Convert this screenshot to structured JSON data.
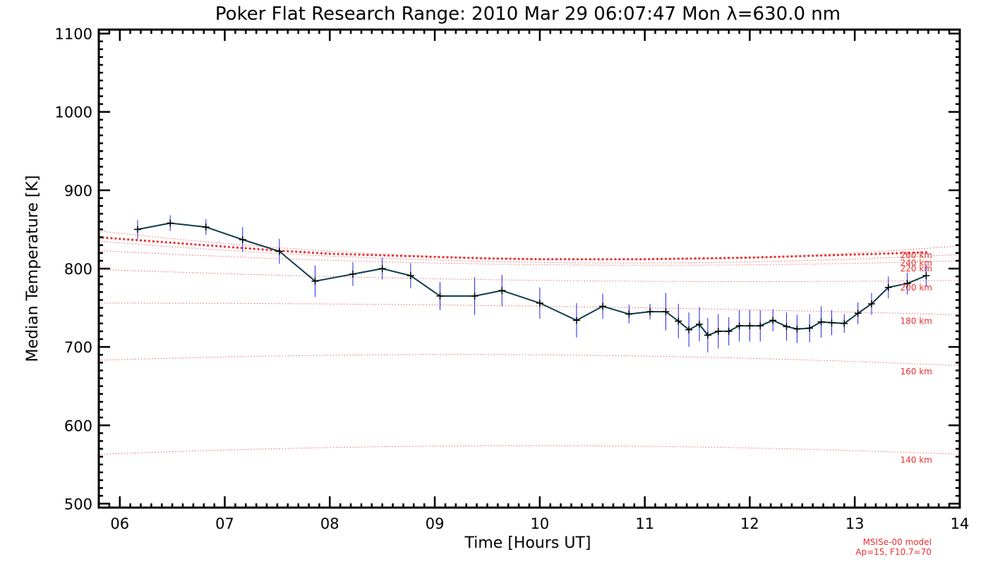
{
  "chart_data": {
    "type": "line",
    "title": "Poker Flat Research Range: 2010 Mar 29 06:07:47 Mon λ=630.0 nm",
    "xlabel": "Time [Hours UT]",
    "ylabel": "Median Temperature [K]",
    "xlim": [
      5.8,
      14.0
    ],
    "ylim": [
      495,
      1105
    ],
    "xticks": [
      6,
      7,
      8,
      9,
      10,
      11,
      12,
      13,
      14
    ],
    "xtick_labels": [
      "06",
      "07",
      "08",
      "09",
      "10",
      "11",
      "12",
      "13",
      "14"
    ],
    "yticks": [
      500,
      600,
      700,
      800,
      900,
      1000,
      1100
    ],
    "ytick_labels": [
      "500",
      "600",
      "700",
      "800",
      "900",
      "1000",
      "1100"
    ],
    "grid": false,
    "colors": {
      "axes": "#000000",
      "series_line": "#0b3b4f",
      "error_bars": "#2222ee",
      "model": "#e83030"
    },
    "series": [
      {
        "x": [
          6.17,
          6.48,
          6.82,
          7.17,
          7.52,
          7.86,
          8.22,
          8.5,
          8.77,
          9.05,
          9.38,
          9.64,
          10.0,
          10.35,
          10.6,
          10.85,
          11.05,
          11.2,
          11.32,
          11.42,
          11.52,
          11.6,
          11.7,
          11.8,
          11.9,
          12.0,
          12.1,
          12.22,
          12.35,
          12.45,
          12.57,
          12.68,
          12.78,
          12.9,
          13.03,
          13.16,
          13.32,
          13.5,
          13.68
        ],
        "y": [
          850,
          858,
          853,
          837,
          822,
          784,
          793,
          800,
          791,
          765,
          765,
          772,
          756,
          734,
          752,
          742,
          745,
          745,
          733,
          722,
          729,
          715,
          720,
          720,
          727,
          727,
          727,
          734,
          726,
          723,
          724,
          732,
          731,
          730,
          743,
          755,
          776,
          781,
          791
        ],
        "error": [
          12,
          10,
          10,
          16,
          16,
          20,
          15,
          14,
          16,
          18,
          24,
          20,
          20,
          22,
          16,
          12,
          10,
          24,
          22,
          22,
          22,
          22,
          22,
          18,
          20,
          20,
          20,
          14,
          18,
          18,
          18,
          20,
          16,
          12,
          14,
          14,
          14,
          14,
          14
        ]
      }
    ],
    "model_curves": [
      {
        "label": "140 km",
        "x": [
          5.8,
          10.0,
          14.0
        ],
        "y": [
          563,
          574,
          563
        ]
      },
      {
        "label": "160 km",
        "x": [
          5.8,
          10.0,
          14.0
        ],
        "y": [
          683,
          690,
          676
        ]
      },
      {
        "label": "180 km",
        "x": [
          5.8,
          10.0,
          14.0
        ],
        "y": [
          756,
          752,
          741
        ]
      },
      {
        "label": "200 km",
        "x": [
          5.8,
          10.0,
          14.0
        ],
        "y": [
          799,
          785,
          785
        ]
      },
      {
        "label": "220 km",
        "x": [
          5.8,
          10.0,
          14.0
        ],
        "y": [
          823,
          805,
          810
        ]
      },
      {
        "label": "240 km",
        "x": [
          5.8,
          10.0,
          14.0
        ],
        "y": [
          835,
          808,
          818
        ]
      },
      {
        "label": "260 km",
        "x": [
          5.8,
          10.0,
          14.0
        ],
        "y": [
          848,
          812,
          829
        ]
      }
    ],
    "model_main": {
      "x": [
        5.8,
        6.5,
        7.0,
        7.5,
        8.0,
        8.5,
        9.0,
        9.5,
        10.0,
        10.5,
        11.0,
        11.5,
        12.0,
        12.5,
        13.0,
        13.5,
        13.7
      ],
      "y": [
        840,
        833,
        828,
        823,
        819,
        817,
        815,
        813,
        812,
        812,
        812,
        813,
        814,
        816,
        818,
        820,
        821
      ]
    },
    "annotations": {
      "model_line1": "MSISe-00 model",
      "model_line2": "Ap=15, F10.7=70"
    }
  }
}
